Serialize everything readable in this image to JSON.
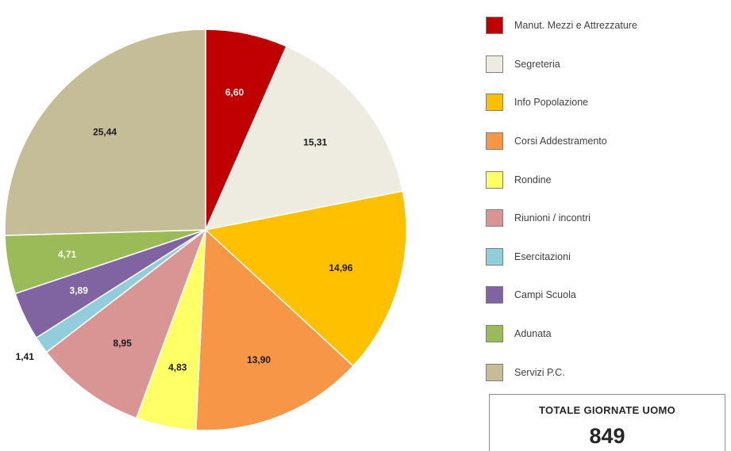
{
  "chart_data": {
    "type": "pie",
    "slices": [
      {
        "label": "Manut. Mezzi e Attrezzature",
        "value": 6.6,
        "display": "6,60",
        "color": "#C00000",
        "label_color": "#ffffff"
      },
      {
        "label": "Segreteria",
        "value": 15.31,
        "display": "15,31",
        "color": "#EEECE1",
        "label_color": "#1a1a1a"
      },
      {
        "label": "Info Popolazione",
        "value": 14.96,
        "display": "14,96",
        "color": "#FFC000",
        "label_color": "#1a1a1a"
      },
      {
        "label": "Corsi Addestramento",
        "value": 13.9,
        "display": "13,90",
        "color": "#F79646",
        "label_color": "#1a1a1a"
      },
      {
        "label": "Rondine",
        "value": 4.83,
        "display": "4,83",
        "color": "#FFFF66",
        "label_color": "#1a1a1a"
      },
      {
        "label": "Riunioni / incontri",
        "value": 8.95,
        "display": "8,95",
        "color": "#D99594",
        "label_color": "#1a1a1a"
      },
      {
        "label": "Esercitazioni",
        "value": 1.41,
        "display": "1,41",
        "color": "#92CDDC",
        "label_color": "#1a1a1a"
      },
      {
        "label": "Campi Scuola",
        "value": 3.89,
        "display": "3,89",
        "color": "#8064A2",
        "label_color": "#ffffff"
      },
      {
        "label": "Adunata",
        "value": 4.71,
        "display": "4,71",
        "color": "#9BBB59",
        "label_color": "#ffffff"
      },
      {
        "label": "Servizi P.C.",
        "value": 25.44,
        "display": "25,44",
        "color": "#C4BD97",
        "label_color": "#1a1a1a"
      }
    ],
    "start_angle_deg": 0,
    "direction": "clockwise",
    "legend_position": "right"
  },
  "total": {
    "title": "TOTALE GIORNATE UOMO",
    "value": "849"
  }
}
